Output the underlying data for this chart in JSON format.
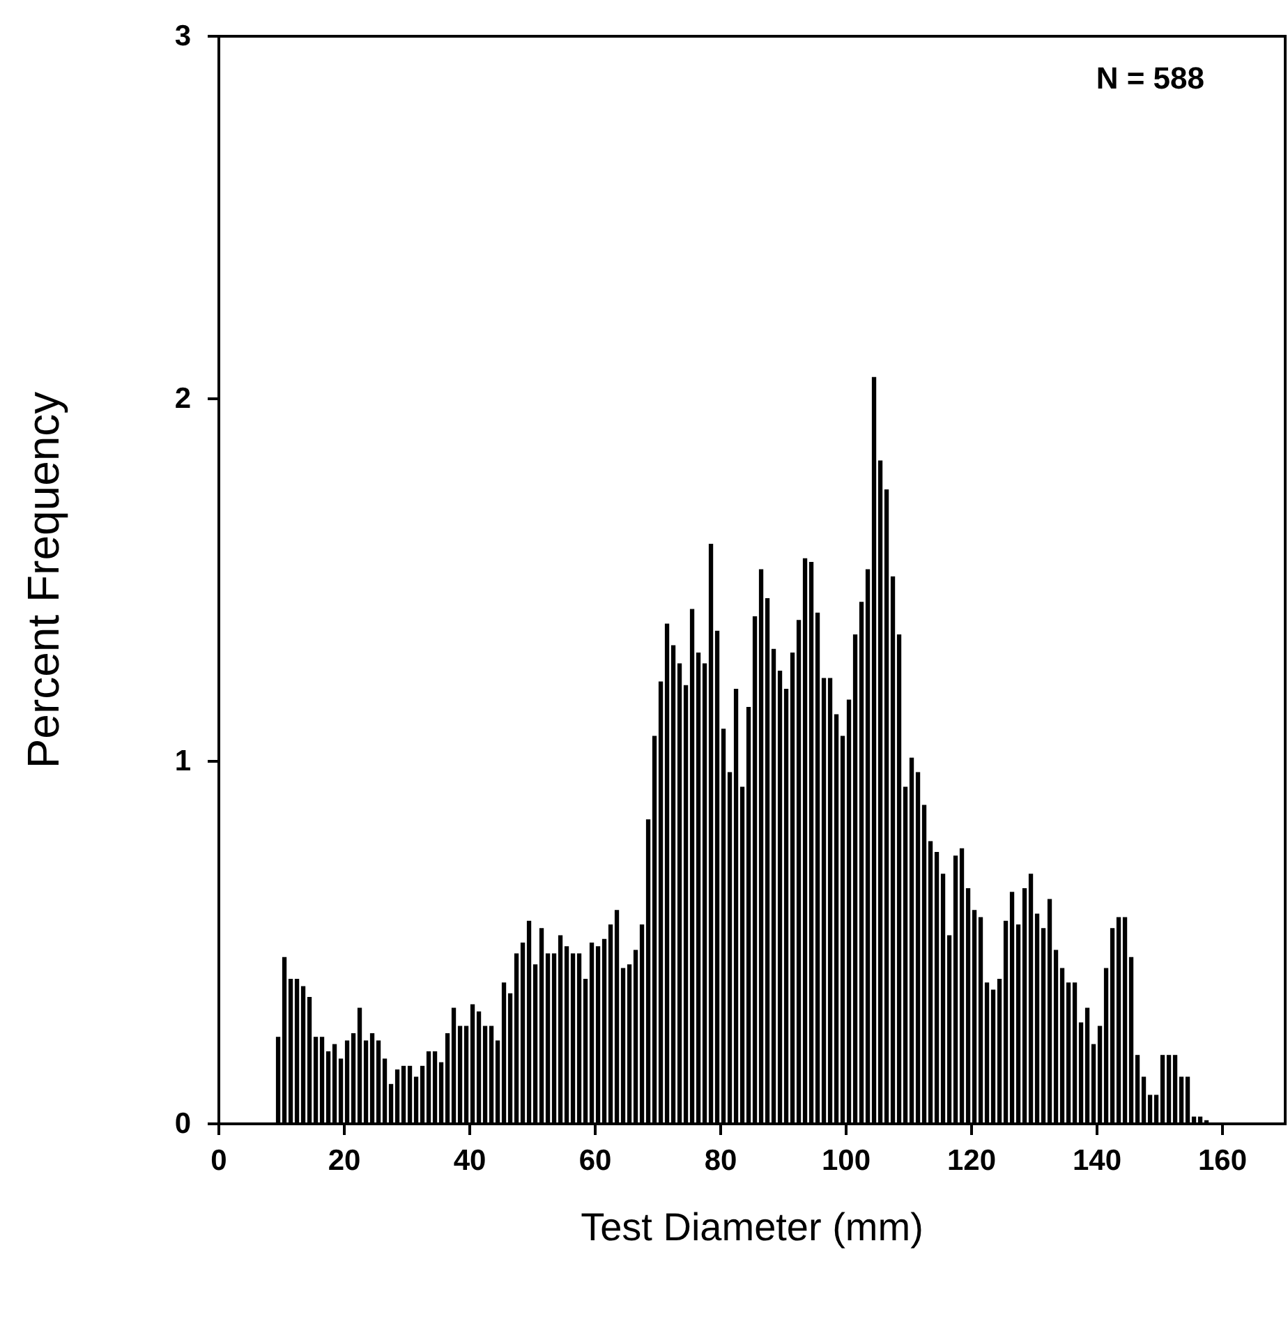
{
  "chart_data": {
    "type": "histogram",
    "xlabel": "Test Diameter (mm)",
    "ylabel": "Percent Frequency",
    "annotations": [
      "N = 588"
    ],
    "bins": [
      9,
      10,
      11,
      12,
      13,
      14,
      15,
      16,
      17,
      18,
      19,
      20,
      21,
      22,
      23,
      24,
      25,
      26,
      27,
      28,
      29,
      30,
      31,
      32,
      33,
      34,
      35,
      36,
      37,
      38,
      39,
      40,
      41,
      42,
      43,
      44,
      45,
      46,
      47,
      48,
      49,
      50,
      51,
      52,
      53,
      54,
      55,
      56,
      57,
      58,
      59,
      60,
      61,
      62,
      63,
      64,
      65,
      66,
      67,
      68,
      69,
      70,
      71,
      72,
      73,
      74,
      75,
      76,
      77,
      78,
      79,
      80,
      81,
      82,
      83,
      84,
      85,
      86,
      87,
      88,
      89,
      90,
      91,
      92,
      93,
      94,
      95,
      96,
      97,
      98,
      99,
      100,
      101,
      102,
      103,
      104,
      105,
      106,
      107,
      108,
      109,
      110,
      111,
      112,
      113,
      114,
      115,
      116,
      117,
      118,
      119,
      120,
      121,
      122,
      123,
      124,
      125,
      126,
      127,
      128,
      129,
      130,
      131,
      132,
      133,
      134,
      135,
      136,
      137,
      138,
      139,
      140,
      141,
      142,
      143,
      144,
      145,
      146,
      147,
      148,
      149,
      150,
      151,
      152,
      153,
      154,
      155,
      156,
      157,
      158
    ],
    "values": [
      0.24,
      0.46,
      0.4,
      0.4,
      0.38,
      0.35,
      0.24,
      0.24,
      0.2,
      0.22,
      0.18,
      0.23,
      0.25,
      0.32,
      0.23,
      0.25,
      0.23,
      0.18,
      0.11,
      0.15,
      0.16,
      0.16,
      0.13,
      0.16,
      0.2,
      0.2,
      0.17,
      0.25,
      0.32,
      0.27,
      0.27,
      0.33,
      0.31,
      0.27,
      0.27,
      0.23,
      0.39,
      0.36,
      0.47,
      0.5,
      0.56,
      0.44,
      0.54,
      0.47,
      0.47,
      0.52,
      0.49,
      0.47,
      0.47,
      0.4,
      0.5,
      0.49,
      0.51,
      0.55,
      0.59,
      0.43,
      0.44,
      0.48,
      0.55,
      0.84,
      1.07,
      1.22,
      1.38,
      1.32,
      1.27,
      1.21,
      1.42,
      1.3,
      1.27,
      1.6,
      1.36,
      1.09,
      0.97,
      1.2,
      0.93,
      1.15,
      1.4,
      1.53,
      1.45,
      1.31,
      1.25,
      1.2,
      1.3,
      1.39,
      1.56,
      1.55,
      1.41,
      1.23,
      1.23,
      1.13,
      1.07,
      1.17,
      1.35,
      1.44,
      1.53,
      2.06,
      1.83,
      1.75,
      1.51,
      1.35,
      0.93,
      1.01,
      0.97,
      0.88,
      0.78,
      0.75,
      0.69,
      0.52,
      0.74,
      0.76,
      0.65,
      0.59,
      0.57,
      0.39,
      0.37,
      0.4,
      0.56,
      0.64,
      0.55,
      0.65,
      0.69,
      0.58,
      0.54,
      0.62,
      0.48,
      0.43,
      0.39,
      0.39,
      0.28,
      0.32,
      0.22,
      0.27,
      0.43,
      0.54,
      0.57,
      0.57,
      0.46,
      0.19,
      0.13,
      0.08,
      0.08,
      0.19,
      0.19,
      0.19,
      0.13,
      0.13,
      0.02,
      0.02,
      0.01
    ],
    "color": "#000000",
    "xlim": [
      0,
      170
    ],
    "xticks": [
      0,
      20,
      40,
      60,
      80,
      100,
      120,
      140,
      160
    ],
    "ylim": [
      0,
      3
    ],
    "yticks": [
      0,
      1,
      2,
      3
    ],
    "grid": false
  }
}
